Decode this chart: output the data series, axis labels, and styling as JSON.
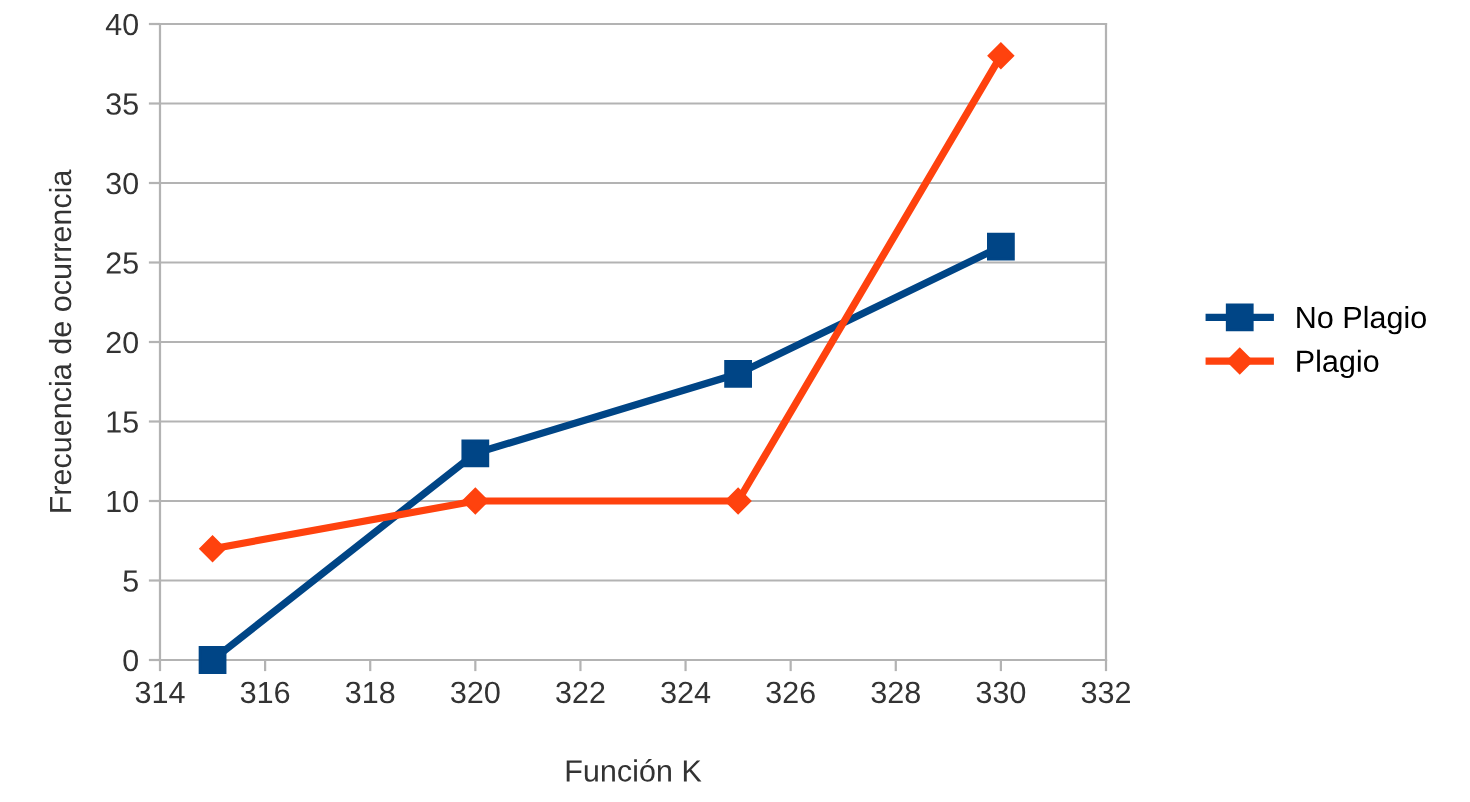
{
  "chart_data": {
    "type": "line",
    "xlabel": "Función K",
    "ylabel": "Frecuencia de ocurrencia",
    "x": [
      315,
      320,
      325,
      330
    ],
    "series": [
      {
        "name": "No Plagio",
        "color": "#004586",
        "values": [
          0,
          13,
          18,
          26
        ],
        "marker": "square"
      },
      {
        "name": "Plagio",
        "color": "#ff420e",
        "values": [
          7,
          10,
          10,
          38
        ],
        "marker": "diamond"
      }
    ],
    "xlim": [
      314,
      332
    ],
    "xticks": [
      314,
      316,
      318,
      320,
      322,
      324,
      326,
      328,
      330,
      332
    ],
    "ylim": [
      0,
      40
    ],
    "yticks": [
      0,
      5,
      10,
      15,
      20,
      25,
      30,
      35,
      40
    ],
    "grid": "y",
    "legend": "right",
    "line_style": "solid"
  }
}
